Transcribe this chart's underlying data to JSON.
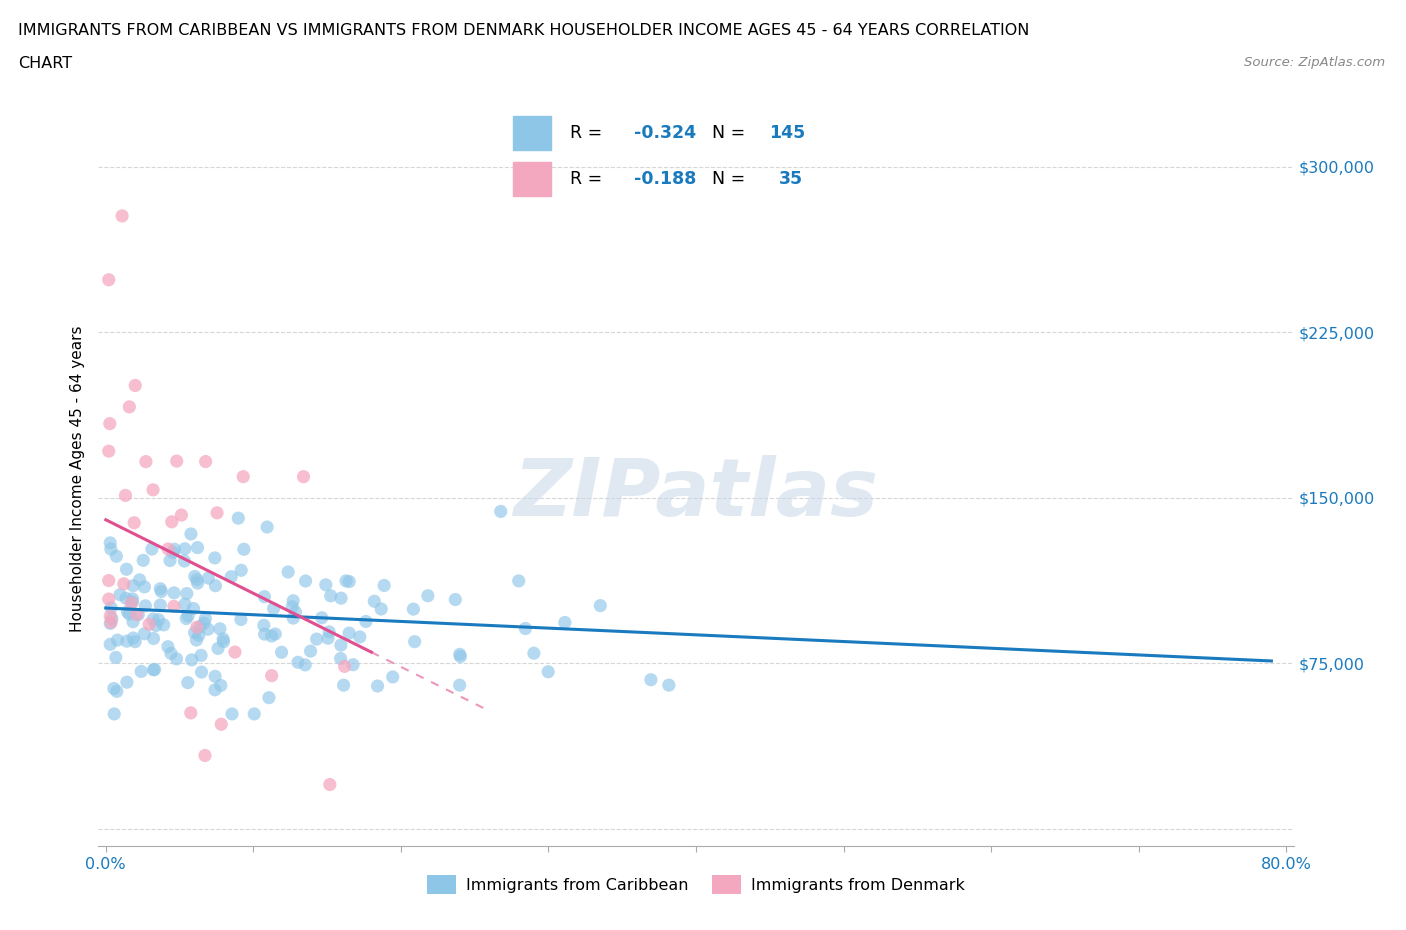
{
  "title_line1": "IMMIGRANTS FROM CARIBBEAN VS IMMIGRANTS FROM DENMARK HOUSEHOLDER INCOME AGES 45 - 64 YEARS CORRELATION",
  "title_line2": "CHART",
  "source_text": "Source: ZipAtlas.com",
  "ylabel": "Householder Income Ages 45 - 64 years",
  "xlim": [
    -0.005,
    0.805
  ],
  "ylim": [
    -8000,
    325000
  ],
  "yticks": [
    0,
    75000,
    150000,
    225000,
    300000
  ],
  "ytick_labels": [
    "",
    "$75,000",
    "$150,000",
    "$225,000",
    "$300,000"
  ],
  "xticks": [
    0.0,
    0.1,
    0.2,
    0.3,
    0.4,
    0.5,
    0.6,
    0.7,
    0.8
  ],
  "xtick_labels": [
    "0.0%",
    "",
    "",
    "",
    "",
    "",
    "",
    "",
    "80.0%"
  ],
  "caribbean_color": "#8ec6e8",
  "denmark_color": "#f4a8c0",
  "caribbean_line_color": "#1a7abf",
  "denmark_line_color": "#e05090",
  "caribbean_R": -0.324,
  "caribbean_N": 145,
  "denmark_R": -0.188,
  "denmark_N": 35,
  "watermark": "ZIPatlas",
  "legend_labels": [
    "Immigrants from Caribbean",
    "Immigrants from Denmark"
  ],
  "grid_color": "#cccccc",
  "title_fontsize": 11.5,
  "tick_label_color": "#1a7abf",
  "source_color": "#888888"
}
